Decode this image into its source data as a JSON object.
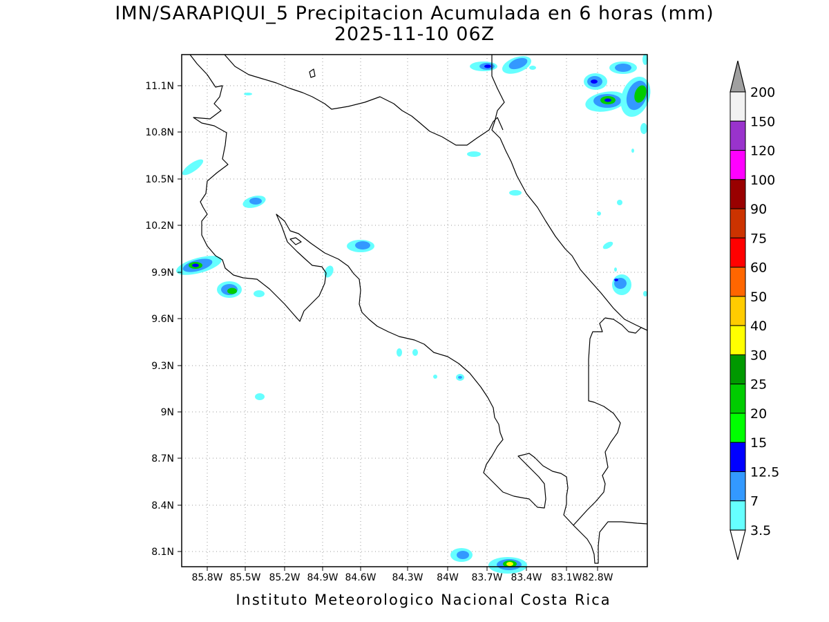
{
  "title": "IMN/SARAPIQUI_5 Precipitacion Acumulada en 6 horas (mm)",
  "subtitle": "2025-11-10 06Z",
  "footer": "Instituto Meteorologico Nacional Costa Rica",
  "lat_ticks": [
    "11.1N",
    "10.8N",
    "10.5N",
    "10.2N",
    "9.9N",
    "9.6N",
    "9.3N",
    "9N",
    "8.7N",
    "8.4N",
    "8.1N"
  ],
  "lon_ticks": [
    "85.8W",
    "85.5W",
    "85.2W",
    "84.9W",
    "84.6W",
    "84.3W",
    "84W",
    "83.7W",
    "83.4W",
    "83.1W",
    "82.8W"
  ],
  "legend": {
    "labels": [
      "200",
      "150",
      "120",
      "100",
      "90",
      "75",
      "60",
      "50",
      "40",
      "30",
      "25",
      "20",
      "15",
      "12.5",
      "7",
      "3.5"
    ],
    "colors": [
      "#f2f2f2",
      "#9933cc",
      "#ff00ff",
      "#990000",
      "#cc3300",
      "#ff0000",
      "#ff6600",
      "#ffcc00",
      "#ffff00",
      "#009900",
      "#00cc00",
      "#00ff00",
      "#0000ff",
      "#3399ff",
      "#66ffff"
    ],
    "top_arrow_color": "#a0a0a0",
    "bottom_arrow_color": "#ffffff"
  }
}
